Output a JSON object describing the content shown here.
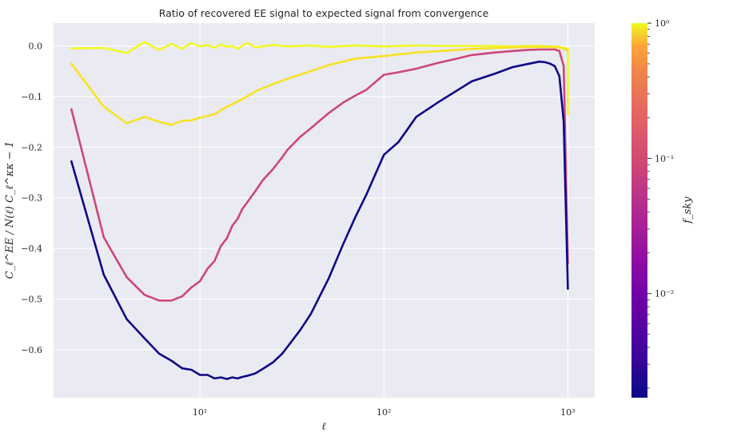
{
  "chart_data": {
    "type": "line",
    "title": "Ratio of recovered EE signal to expected signal from convergence",
    "xlabel": "ℓ",
    "ylabel": "C_ℓ^EE / N(ℓ) C_ℓ^κκ − 1",
    "xscale": "log",
    "xlim": [
      1.6,
      1400
    ],
    "ylim": [
      -0.695,
      0.045
    ],
    "x_ticks": [
      10,
      100,
      1000
    ],
    "x_tick_labels": [
      "10¹",
      "10²",
      "10³"
    ],
    "y_ticks": [
      0.0,
      -0.1,
      -0.2,
      -0.3,
      -0.4,
      -0.5,
      -0.6
    ],
    "y_tick_labels": [
      "0.0",
      "−0.1",
      "−0.2",
      "−0.3",
      "−0.4",
      "−0.5",
      "−0.6"
    ],
    "grid": true,
    "legend": "none",
    "colorbar": {
      "label": "f_sky",
      "scale": "log",
      "colormap": "plasma",
      "range": [
        0.0017,
        1.0
      ],
      "major_ticks": [
        1,
        0.1,
        0.01
      ],
      "major_tick_labels": [
        "10⁰",
        "10⁻¹",
        "10⁻²"
      ]
    },
    "series": [
      {
        "color": "#F1F925",
        "x": [
          2,
          3,
          4,
          5,
          6,
          7,
          8,
          9,
          10,
          11,
          12,
          13,
          14,
          15,
          16,
          18,
          20,
          25,
          30,
          40,
          50,
          70,
          100,
          150,
          200,
          300,
          400,
          500,
          600,
          700,
          800,
          900,
          950,
          1000,
          1000
        ],
        "y": [
          -0.005,
          -0.004,
          -0.014,
          0.008,
          -0.008,
          0.004,
          -0.006,
          0.006,
          -0.001,
          0.002,
          -0.004,
          0.003,
          -0.002,
          0.0,
          -0.006,
          0.006,
          -0.003,
          0.002,
          -0.001,
          0.001,
          -0.002,
          0.001,
          -0.001,
          0.001,
          0.0,
          0.0,
          0.0,
          -0.001,
          0.0,
          0.0,
          -0.001,
          -0.002,
          -0.004,
          -0.006,
          -0.135
        ]
      },
      {
        "color": "#F7E225",
        "x": [
          2,
          3,
          4,
          5,
          6,
          7,
          8,
          9,
          10,
          12,
          14,
          16,
          18,
          20,
          25,
          30,
          40,
          50,
          70,
          100,
          150,
          200,
          300,
          400,
          500,
          600,
          700,
          800,
          900,
          950,
          1000
        ],
        "y": [
          -0.035,
          -0.12,
          -0.153,
          -0.14,
          -0.15,
          -0.156,
          -0.148,
          -0.147,
          -0.142,
          -0.135,
          -0.12,
          -0.11,
          -0.1,
          -0.09,
          -0.075,
          -0.065,
          -0.05,
          -0.038,
          -0.025,
          -0.02,
          -0.013,
          -0.01,
          -0.006,
          -0.004,
          -0.003,
          -0.002,
          -0.002,
          -0.002,
          -0.003,
          -0.005,
          -0.01
        ]
      },
      {
        "color": "#CC4778",
        "x": [
          2,
          3,
          4,
          5,
          6,
          7,
          8,
          9,
          10,
          11,
          12,
          13,
          14,
          15,
          16,
          17,
          18,
          20,
          22,
          25,
          28,
          30,
          35,
          40,
          50,
          60,
          70,
          80,
          100,
          120,
          150,
          200,
          250,
          300,
          400,
          500,
          600,
          700,
          800,
          850,
          900,
          950,
          1000
        ],
        "y": [
          -0.125,
          -0.378,
          -0.457,
          -0.492,
          -0.503,
          -0.503,
          -0.495,
          -0.477,
          -0.465,
          -0.44,
          -0.425,
          -0.395,
          -0.38,
          -0.355,
          -0.342,
          -0.322,
          -0.31,
          -0.287,
          -0.265,
          -0.243,
          -0.22,
          -0.205,
          -0.18,
          -0.163,
          -0.133,
          -0.112,
          -0.098,
          -0.087,
          -0.057,
          -0.052,
          -0.045,
          -0.033,
          -0.025,
          -0.018,
          -0.013,
          -0.01,
          -0.008,
          -0.007,
          -0.007,
          -0.007,
          -0.01,
          -0.04,
          -0.43
        ]
      },
      {
        "color": "#0D0887",
        "x": [
          2,
          3,
          4,
          5,
          6,
          7,
          8,
          9,
          10,
          11,
          12,
          13,
          14,
          15,
          16,
          17,
          18,
          20,
          22,
          25,
          28,
          30,
          35,
          40,
          50,
          60,
          70,
          80,
          100,
          120,
          150,
          200,
          250,
          300,
          400,
          500,
          600,
          700,
          750,
          800,
          850,
          900,
          950,
          1000
        ],
        "y": [
          -0.228,
          -0.452,
          -0.54,
          -0.578,
          -0.608,
          -0.622,
          -0.637,
          -0.64,
          -0.65,
          -0.65,
          -0.657,
          -0.655,
          -0.658,
          -0.655,
          -0.657,
          -0.654,
          -0.652,
          -0.647,
          -0.638,
          -0.625,
          -0.608,
          -0.594,
          -0.562,
          -0.53,
          -0.46,
          -0.392,
          -0.338,
          -0.295,
          -0.215,
          -0.19,
          -0.14,
          -0.11,
          -0.088,
          -0.07,
          -0.055,
          -0.042,
          -0.036,
          -0.031,
          -0.032,
          -0.035,
          -0.04,
          -0.06,
          -0.15,
          -0.48
        ]
      }
    ]
  }
}
